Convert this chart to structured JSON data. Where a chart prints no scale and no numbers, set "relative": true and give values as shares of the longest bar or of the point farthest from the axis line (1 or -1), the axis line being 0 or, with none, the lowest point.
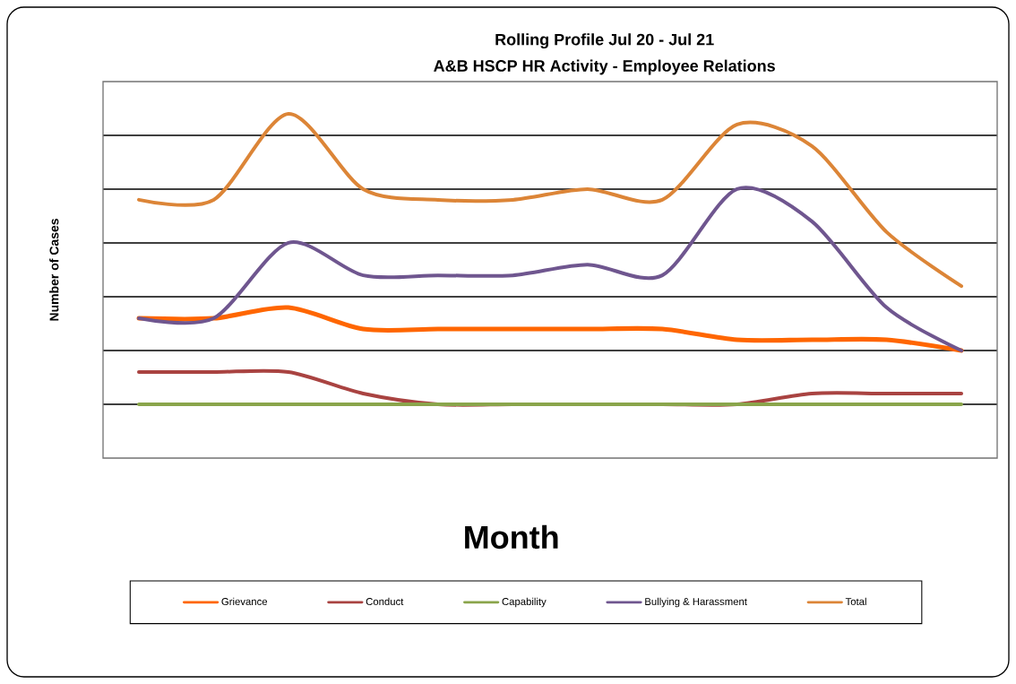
{
  "chart_data": {
    "type": "line",
    "title": "Rolling Profile Jul 20 -  Jul 21",
    "subtitle": "A&B HSCP HR Activity - Employee Relations",
    "xlabel": "Month",
    "ylabel": "Number of Cases",
    "relative": true,
    "grid": "y",
    "legend": "bottom",
    "categories": [
      null,
      null,
      null,
      null,
      null,
      null,
      null,
      null,
      null,
      null,
      null,
      null
    ],
    "series": [
      {
        "name": "Grievance",
        "color": "#ff6600",
        "values": [
          0.296,
          0.296,
          0.333,
          0.259,
          0.259,
          0.259,
          0.259,
          0.259,
          0.222,
          0.222,
          0.222,
          0.185
        ]
      },
      {
        "name": "Conduct",
        "color": "#a94341",
        "values": [
          0.111,
          0.111,
          0.111,
          0.037,
          0,
          0,
          0,
          0,
          0,
          0.037,
          0.037,
          0.037
        ]
      },
      {
        "name": "Capability",
        "color": "#8aa54b",
        "values": [
          0,
          0,
          0,
          0,
          0,
          0,
          0,
          0,
          0,
          0,
          0,
          0
        ]
      },
      {
        "name": "Bullying & Harassment",
        "color": "#6f568f",
        "values": [
          0.296,
          0.296,
          0.556,
          0.444,
          0.444,
          0.444,
          0.481,
          0.444,
          0.741,
          0.63,
          0.333,
          0.185
        ]
      },
      {
        "name": "Total",
        "color": "#dc8537",
        "values": [
          0.704,
          0.704,
          1,
          0.741,
          0.704,
          0.704,
          0.741,
          0.704,
          0.963,
          0.889,
          0.593,
          0.407
        ]
      }
    ]
  }
}
